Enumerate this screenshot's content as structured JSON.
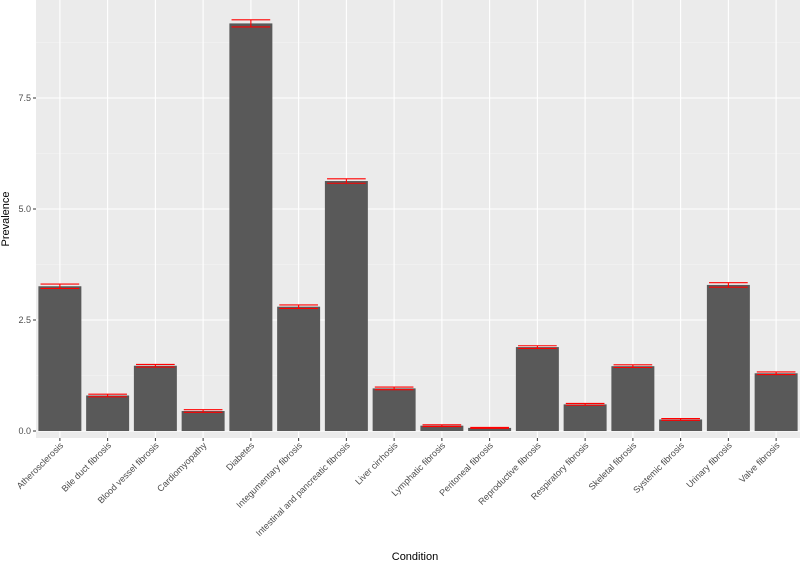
{
  "chart_data": {
    "type": "bar",
    "title": "",
    "xlabel": "Condition",
    "ylabel": "Prevalence",
    "ylim": [
      0,
      9.5
    ],
    "yticks": [
      0,
      2.5,
      5,
      7.5
    ],
    "ytick_labels": [
      "0.0",
      "2.5",
      "5.0",
      "7.5"
    ],
    "grid": true,
    "categories": [
      "Atherosclerosis",
      "Bile duct fibrosis",
      "Blood vessel fibrosis",
      "Cardiomyopathy",
      "Diabetes",
      "Integumentary fibrosis",
      "Intestinal and pancreatic fibrosis",
      "Liver cirrhosis",
      "Lymphatic fibrosis",
      "Peritoneal fibrosis",
      "Reproductive fibrosis",
      "Respiratory fibrosis",
      "Skeletal fibrosis",
      "Systemic fibrosis",
      "Urinary fibrosis",
      "Valve fibrosis"
    ],
    "values": [
      3.26,
      0.8,
      1.47,
      0.45,
      9.18,
      2.8,
      5.63,
      0.96,
      0.12,
      0.07,
      1.89,
      0.6,
      1.46,
      0.26,
      3.29,
      1.3
    ],
    "error_low": [
      3.21,
      0.77,
      1.44,
      0.42,
      9.1,
      2.76,
      5.58,
      0.93,
      0.1,
      0.06,
      1.86,
      0.58,
      1.43,
      0.24,
      3.24,
      1.27
    ],
    "error_high": [
      3.31,
      0.83,
      1.5,
      0.48,
      9.26,
      2.84,
      5.68,
      0.99,
      0.14,
      0.08,
      1.92,
      0.62,
      1.49,
      0.28,
      3.34,
      1.33
    ],
    "colors": {
      "panel": "#ebebeb",
      "grid_major": "#ffffff",
      "grid_minor": "#f5f5f5",
      "bar": "#595959",
      "error_bar": "#ff0000",
      "tick_text": "#4d4d4d",
      "tick_mark": "#333333"
    }
  }
}
